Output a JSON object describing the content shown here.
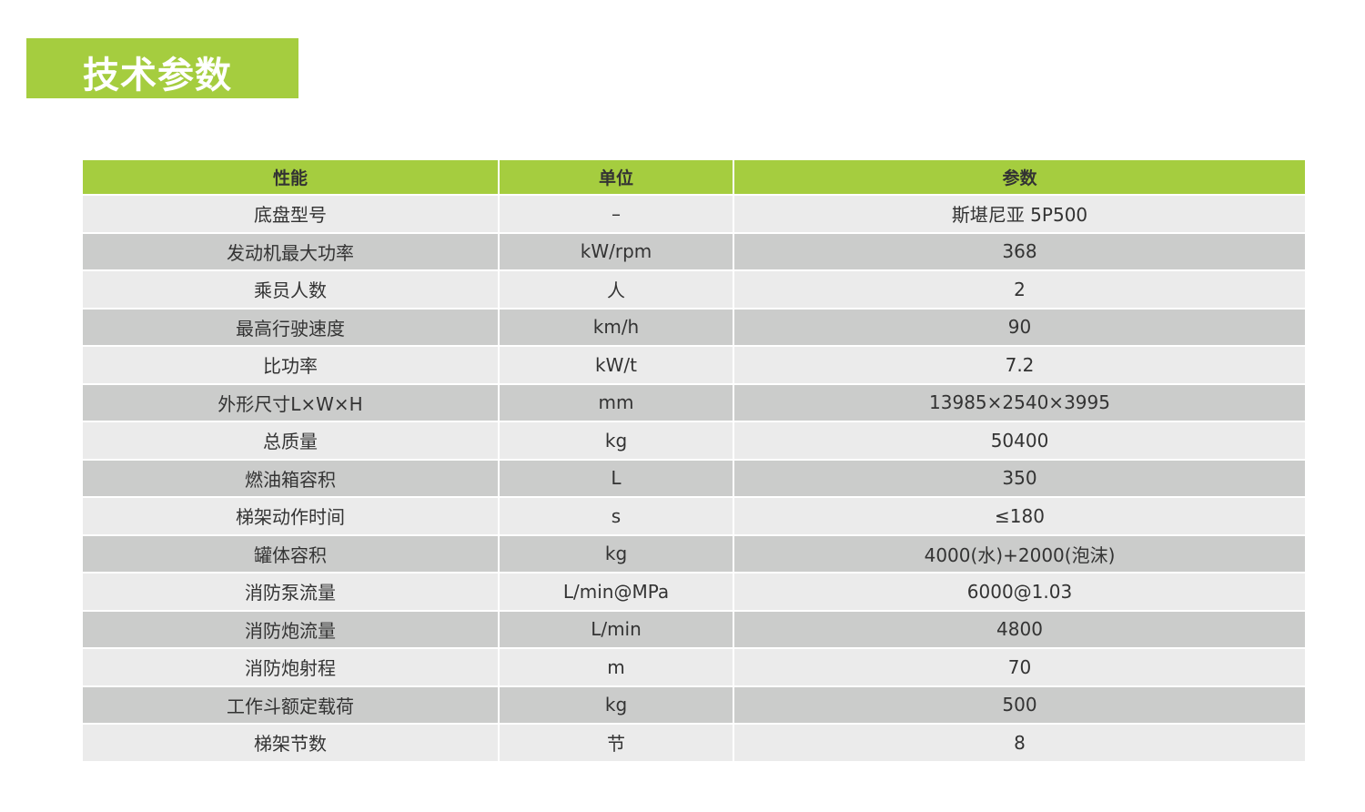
{
  "title": "技术参数",
  "colors": {
    "accent": "#a5cd3f",
    "row_light": "#ebebeb",
    "row_dark": "#cbcccb"
  },
  "table": {
    "headers": [
      "性能",
      "单位",
      "参数"
    ],
    "rows": [
      [
        "底盘型号",
        "–",
        "斯堪尼亚 5P500"
      ],
      [
        "发动机最大功率",
        "kW/rpm",
        "368"
      ],
      [
        "乘员人数",
        "人",
        "2"
      ],
      [
        "最高行驶速度",
        "km/h",
        "90"
      ],
      [
        "比功率",
        "kW/t",
        "7.2"
      ],
      [
        "外形尺寸L×W×H",
        "mm",
        "13985×2540×3995"
      ],
      [
        "总质量",
        "kg",
        "50400"
      ],
      [
        "燃油箱容积",
        "L",
        "350"
      ],
      [
        "梯架动作时间",
        "s",
        "≤180"
      ],
      [
        "罐体容积",
        "kg",
        "4000(水)+2000(泡沫)"
      ],
      [
        "消防泵流量",
        "L/min@MPa",
        "6000@1.03"
      ],
      [
        "消防炮流量",
        "L/min",
        "4800"
      ],
      [
        "消防炮射程",
        "m",
        "70"
      ],
      [
        "工作斗额定载荷",
        "kg",
        "500"
      ],
      [
        "梯架节数",
        "节",
        "8"
      ]
    ]
  }
}
